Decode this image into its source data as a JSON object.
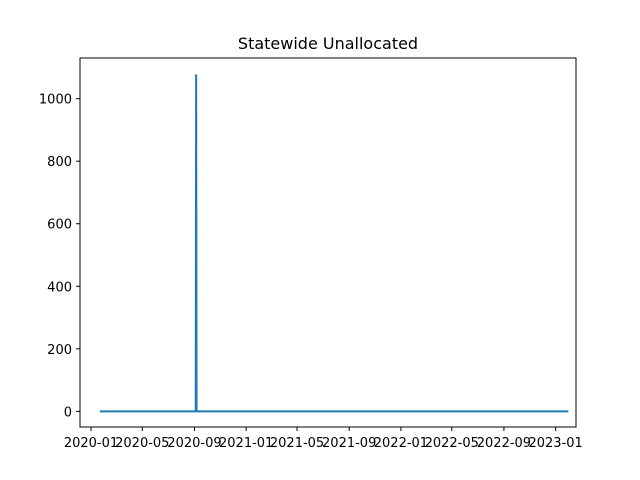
{
  "chart_data": {
    "type": "line",
    "title": "Statewide Unallocated",
    "xlabel": "",
    "ylabel": "",
    "xlim": [
      "2019-12-06",
      "2023-02-18"
    ],
    "ylim": [
      -50,
      1130
    ],
    "grid": false,
    "x_ticks": [
      "2020-01",
      "2020-05",
      "2020-09",
      "2021-01",
      "2021-05",
      "2021-09",
      "2022-01",
      "2022-05",
      "2022-09",
      "2023-01"
    ],
    "y_ticks": [
      0,
      200,
      400,
      600,
      800,
      1000
    ],
    "series": [
      {
        "color": "#1f77b4",
        "x": [
          "2020-01-22",
          "2020-09-04",
          "2020-09-05",
          "2020-09-06",
          "2023-01-31"
        ],
        "y": [
          0,
          0,
          1075,
          0,
          0
        ]
      }
    ]
  }
}
